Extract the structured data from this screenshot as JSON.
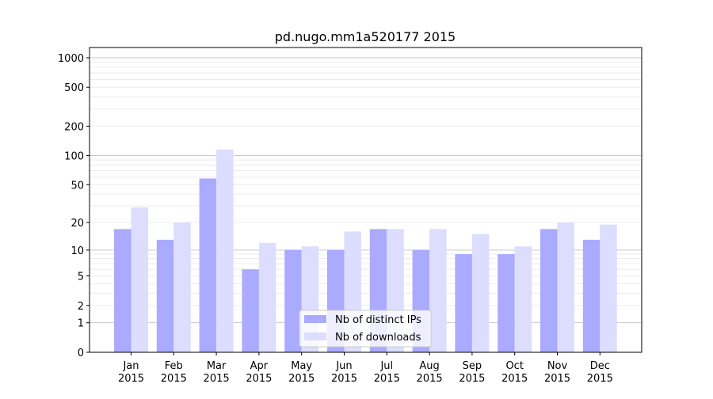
{
  "chart_data": {
    "type": "bar",
    "title": "pd.nugo.mm1a520177 2015",
    "xlabel": "",
    "ylabel": "",
    "yscale": "symlog",
    "ylim": [
      0,
      1300
    ],
    "yticks": [
      0,
      1,
      2,
      5,
      10,
      20,
      50,
      100,
      200,
      500,
      1000
    ],
    "ytick_labels": [
      "0",
      "1",
      "2",
      "5",
      "10",
      "20",
      "50",
      "100",
      "200",
      "500",
      "1000"
    ],
    "grid": true,
    "legend_position": "bottom-center",
    "categories": [
      "Jan\n2015",
      "Feb\n2015",
      "Mar\n2015",
      "Apr\n2015",
      "May\n2015",
      "Jun\n2015",
      "Jul\n2015",
      "Aug\n2015",
      "Sep\n2015",
      "Oct\n2015",
      "Nov\n2015",
      "Dec\n2015"
    ],
    "series": [
      {
        "name": "Nb of distinct IPs",
        "color": "#aaaaff",
        "values": [
          17,
          13,
          58,
          6,
          10,
          10,
          17,
          10,
          9,
          9,
          17,
          13
        ]
      },
      {
        "name": "Nb of downloads",
        "color": "#ddddff",
        "values": [
          29,
          20,
          115,
          12,
          11,
          16,
          17,
          17,
          15,
          11,
          20,
          19
        ]
      }
    ]
  }
}
